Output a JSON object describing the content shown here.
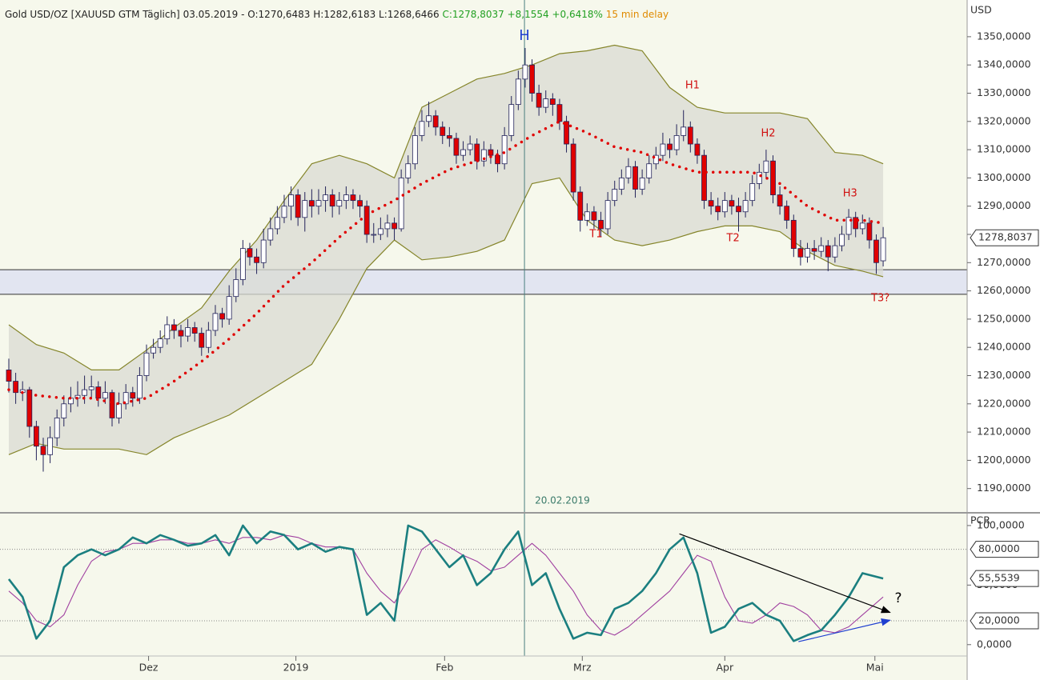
{
  "header": {
    "instrument": "Gold USD/OZ [XAUUSD GTM Täglich]",
    "date": "03.05.2019 -",
    "ohl": "O:1270,6483 H:1282,6183 L:1268,6466",
    "change": "C:1278,8037 +8,1554 +0,6418%",
    "delay": "15 min delay"
  },
  "chart_data": [
    {
      "type": "candlestick",
      "y_label": "USD",
      "open": [
        1232,
        1228,
        1224,
        1225,
        1212,
        1205,
        1202,
        1208,
        1215,
        1220,
        1222,
        1223,
        1225,
        1226,
        1222,
        1224,
        1215,
        1220,
        1224,
        1222,
        1230,
        1238,
        1240,
        1243,
        1248,
        1246,
        1244,
        1247,
        1245,
        1240,
        1246,
        1252,
        1250,
        1258,
        1264,
        1275,
        1272,
        1270,
        1278,
        1282,
        1286,
        1290,
        1294,
        1286,
        1292,
        1290,
        1292,
        1294,
        1290,
        1292,
        1294,
        1292,
        1290,
        1280,
        1280,
        1282,
        1284,
        1282,
        1300,
        1305,
        1315,
        1320,
        1322,
        1318,
        1315,
        1314,
        1308,
        1310,
        1312,
        1306,
        1310,
        1308,
        1305,
        1315,
        1326,
        1335,
        1340,
        1330,
        1325,
        1328,
        1326,
        1320,
        1312,
        1295,
        1285,
        1288,
        1285,
        1282,
        1292,
        1296,
        1300,
        1304,
        1296,
        1300,
        1305,
        1308,
        1312,
        1310,
        1315,
        1318,
        1312,
        1308,
        1292,
        1290,
        1288,
        1292,
        1290,
        1288,
        1292,
        1298,
        1302,
        1306,
        1294,
        1290,
        1285,
        1275,
        1272,
        1275,
        1274,
        1276,
        1272,
        1276,
        1280,
        1286,
        1282,
        1284,
        1278,
        1270.6483
      ],
      "high": [
        1236,
        1231,
        1228,
        1226,
        1214,
        1208,
        1212,
        1218,
        1223,
        1226,
        1228,
        1230,
        1230,
        1228,
        1228,
        1225,
        1224,
        1227,
        1226,
        1233,
        1241,
        1243,
        1246,
        1251,
        1250,
        1248,
        1250,
        1249,
        1247,
        1249,
        1255,
        1254,
        1262,
        1268,
        1278,
        1277,
        1275,
        1282,
        1286,
        1290,
        1294,
        1297,
        1296,
        1295,
        1296,
        1296,
        1297,
        1296,
        1295,
        1297,
        1296,
        1294,
        1292,
        1284,
        1286,
        1287,
        1286,
        1303,
        1308,
        1318,
        1324,
        1327,
        1324,
        1320,
        1318,
        1316,
        1313,
        1315,
        1314,
        1313,
        1312,
        1310,
        1318,
        1329,
        1338,
        1346,
        1342,
        1333,
        1331,
        1330,
        1328,
        1322,
        1314,
        1297,
        1291,
        1290,
        1288,
        1295,
        1299,
        1303,
        1307,
        1306,
        1303,
        1308,
        1311,
        1316,
        1314,
        1319,
        1324,
        1320,
        1314,
        1310,
        1295,
        1293,
        1295,
        1294,
        1293,
        1295,
        1301,
        1305,
        1310,
        1308,
        1297,
        1292,
        1287,
        1278,
        1277,
        1278,
        1279,
        1278,
        1279,
        1283,
        1289,
        1288,
        1287,
        1286,
        1280,
        1282.6183
      ],
      "low": [
        1224,
        1220,
        1221,
        1208,
        1200,
        1196,
        1199,
        1205,
        1212,
        1217,
        1219,
        1220,
        1222,
        1219,
        1220,
        1212,
        1213,
        1218,
        1219,
        1220,
        1228,
        1236,
        1238,
        1241,
        1243,
        1240,
        1242,
        1242,
        1237,
        1238,
        1244,
        1247,
        1248,
        1256,
        1262,
        1269,
        1266,
        1268,
        1276,
        1280,
        1284,
        1285,
        1283,
        1281,
        1286,
        1287,
        1288,
        1286,
        1287,
        1289,
        1289,
        1286,
        1277,
        1277,
        1278,
        1279,
        1278,
        1281,
        1298,
        1303,
        1313,
        1318,
        1315,
        1312,
        1311,
        1305,
        1306,
        1308,
        1303,
        1304,
        1305,
        1302,
        1303,
        1313,
        1324,
        1332,
        1327,
        1322,
        1323,
        1322,
        1317,
        1309,
        1292,
        1281,
        1283,
        1282,
        1279,
        1280,
        1290,
        1294,
        1298,
        1293,
        1294,
        1298,
        1303,
        1306,
        1307,
        1308,
        1313,
        1309,
        1305,
        1289,
        1287,
        1285,
        1286,
        1287,
        1281,
        1286,
        1290,
        1296,
        1300,
        1291,
        1287,
        1282,
        1272,
        1269,
        1270,
        1271,
        1272,
        1267,
        1270,
        1274,
        1278,
        1279,
        1280,
        1275,
        1266,
        1268.6466
      ],
      "close": [
        1228,
        1224,
        1225,
        1212,
        1205,
        1202,
        1208,
        1215,
        1220,
        1222,
        1223,
        1225,
        1226,
        1222,
        1224,
        1215,
        1220,
        1224,
        1222,
        1230,
        1238,
        1240,
        1243,
        1248,
        1246,
        1244,
        1247,
        1245,
        1240,
        1246,
        1252,
        1250,
        1258,
        1264,
        1275,
        1272,
        1270,
        1278,
        1282,
        1286,
        1290,
        1294,
        1286,
        1292,
        1290,
        1292,
        1294,
        1290,
        1292,
        1294,
        1292,
        1290,
        1280,
        1280,
        1282,
        1284,
        1282,
        1300,
        1305,
        1315,
        1320,
        1322,
        1318,
        1315,
        1314,
        1308,
        1310,
        1312,
        1306,
        1310,
        1308,
        1305,
        1315,
        1326,
        1335,
        1340,
        1330,
        1325,
        1328,
        1326,
        1320,
        1312,
        1295,
        1285,
        1288,
        1285,
        1282,
        1292,
        1296,
        1300,
        1304,
        1296,
        1300,
        1305,
        1308,
        1312,
        1310,
        1315,
        1318,
        1312,
        1308,
        1292,
        1290,
        1288,
        1292,
        1290,
        1288,
        1292,
        1298,
        1302,
        1306,
        1294,
        1290,
        1285,
        1275,
        1272,
        1275,
        1274,
        1276,
        1272,
        1276,
        1280,
        1286,
        1282,
        1284,
        1278,
        1270,
        1278.8037
      ],
      "up_color": "#ffffff",
      "down_color": "#e00000",
      "outline_color": "#23235a",
      "bands": {
        "x": [
          0,
          4,
          8,
          12,
          16,
          20,
          24,
          28,
          32,
          36,
          40,
          44,
          48,
          52,
          56,
          60,
          64,
          68,
          72,
          76,
          80,
          84,
          88,
          92,
          96,
          100,
          104,
          108,
          112,
          116,
          120,
          124,
          127
        ],
        "upper": [
          1248,
          1241,
          1238,
          1232,
          1232,
          1239,
          1247,
          1254,
          1267,
          1278,
          1292,
          1305,
          1308,
          1305,
          1300,
          1325,
          1330,
          1335,
          1337,
          1340,
          1344,
          1345,
          1347,
          1345,
          1332,
          1325,
          1323,
          1323,
          1323,
          1321,
          1309,
          1308,
          1305
        ],
        "middle": [
          1225,
          1223,
          1222,
          1222,
          1220,
          1222,
          1228,
          1235,
          1243,
          1252,
          1262,
          1270,
          1279,
          1287,
          1292,
          1298,
          1303,
          1306,
          1309,
          1315,
          1320,
          1316,
          1311,
          1309,
          1305,
          1302,
          1302,
          1302,
          1298,
          1290,
          1285,
          1285,
          1284
        ],
        "lower": [
          1202,
          1206,
          1204,
          1204,
          1204,
          1202,
          1208,
          1212,
          1216,
          1222,
          1228,
          1234,
          1250,
          1268,
          1278,
          1271,
          1272,
          1274,
          1278,
          1298,
          1300,
          1285,
          1278,
          1276,
          1278,
          1281,
          1283,
          1283,
          1281,
          1274,
          1269,
          1267,
          1265
        ],
        "band_color": "#85852a",
        "fill_color": "#d9dbd3",
        "middle_color": "#e00000"
      },
      "zone": [
        1258.8,
        1267.5
      ],
      "zone_color": "#dde0f2",
      "marker_x": 74.9,
      "marker_label": "20.02.2019",
      "last_price_label": "1278,8037",
      "annotations": [
        {
          "text": "H",
          "x": 74.9,
          "y": 1350.3,
          "color": "#1f3fd0"
        },
        {
          "text": "H1",
          "x": 99.3,
          "y": 1332.7,
          "color": "#d01010"
        },
        {
          "text": "H2",
          "x": 110.3,
          "y": 1315.7,
          "color": "#d01010"
        },
        {
          "text": "H3",
          "x": 122.2,
          "y": 1294.5,
          "color": "#d01010"
        },
        {
          "text": "T1",
          "x": 85.3,
          "y": 1280,
          "color": "#d01010"
        },
        {
          "text": "T2",
          "x": 105.2,
          "y": 1278.6,
          "color": "#d01010"
        },
        {
          "text": "T3?",
          "x": 126.6,
          "y": 1257.4,
          "color": "#d01010"
        }
      ],
      "xlim": [
        -1.28,
        139.2
      ],
      "ylim": [
        1181.7,
        1363
      ],
      "xticks": [
        {
          "value": 20.3,
          "label": "Dez"
        },
        {
          "value": 41.7,
          "label": "2019"
        },
        {
          "value": 63.3,
          "label": "Feb"
        },
        {
          "value": 83.3,
          "label": "Mrz"
        },
        {
          "value": 104,
          "label": "Apr"
        },
        {
          "value": 125.8,
          "label": "Mai"
        }
      ],
      "yticks": [
        {
          "value": 1190,
          "label": "1190,0000"
        },
        {
          "value": 1200,
          "label": "1200,0000"
        },
        {
          "value": 1210,
          "label": "1210,0000"
        },
        {
          "value": 1220,
          "label": "1220,0000"
        },
        {
          "value": 1230,
          "label": "1230,0000"
        },
        {
          "value": 1240,
          "label": "1240,0000"
        },
        {
          "value": 1250,
          "label": "1250,0000"
        },
        {
          "value": 1260,
          "label": "1260,0000"
        },
        {
          "value": 1270,
          "label": "1270,0000"
        },
        {
          "value": 1280,
          "label": "1280,0000"
        },
        {
          "value": 1290,
          "label": "1290,0000"
        },
        {
          "value": 1300,
          "label": "1300,0000"
        },
        {
          "value": 1310,
          "label": "1310,0000"
        },
        {
          "value": 1320,
          "label": "1320,0000"
        },
        {
          "value": 1330,
          "label": "1330,0000"
        },
        {
          "value": 1340,
          "label": "1340,0000"
        },
        {
          "value": 1350,
          "label": "1350,0000"
        }
      ]
    },
    {
      "type": "line",
      "y_label": "PCR",
      "x": [
        0,
        2,
        4,
        6,
        8,
        10,
        12,
        14,
        16,
        18,
        20,
        22,
        24,
        26,
        28,
        30,
        32,
        34,
        36,
        38,
        40,
        42,
        44,
        46,
        48,
        50,
        52,
        54,
        56,
        58,
        60,
        62,
        64,
        66,
        68,
        70,
        72,
        74,
        76,
        78,
        80,
        82,
        84,
        86,
        88,
        90,
        92,
        94,
        96,
        98,
        100,
        102,
        104,
        106,
        108,
        110,
        112,
        114,
        116,
        118,
        120,
        122,
        124,
        127
      ],
      "series": [
        {
          "color": "#1b7f80",
          "values": [
            55,
            40,
            5,
            20,
            65,
            75,
            80,
            75,
            80,
            90,
            85,
            92,
            88,
            83,
            85,
            92,
            75,
            100,
            85,
            95,
            92,
            80,
            85,
            78,
            82,
            80,
            25,
            35,
            20,
            100,
            95,
            80,
            65,
            75,
            50,
            60,
            80,
            95,
            50,
            60,
            30,
            5,
            10,
            8,
            30,
            35,
            45,
            60,
            80,
            90,
            60,
            10,
            15,
            30,
            35,
            25,
            20,
            3,
            8,
            12,
            25,
            40,
            60,
            55.5539
          ]
        },
        {
          "color": "#a040a0",
          "values": [
            45,
            35,
            20,
            15,
            25,
            50,
            70,
            78,
            80,
            85,
            85,
            88,
            88,
            85,
            85,
            88,
            85,
            90,
            90,
            88,
            92,
            90,
            85,
            82,
            82,
            80,
            60,
            45,
            35,
            55,
            80,
            88,
            82,
            75,
            70,
            62,
            65,
            75,
            85,
            75,
            60,
            45,
            25,
            12,
            8,
            15,
            25,
            35,
            45,
            60,
            75,
            70,
            40,
            20,
            18,
            25,
            35,
            32,
            25,
            12,
            10,
            15,
            25,
            40
          ]
        }
      ],
      "reference_lines": [
        20,
        80
      ],
      "tags": [
        {
          "value": 80,
          "label": "80,0000"
        },
        {
          "value": 55.5539,
          "label": "55,5539"
        },
        {
          "value": 20,
          "label": "20,0000"
        }
      ],
      "arrows": [
        {
          "x": [
            97.4,
            128
          ],
          "y": [
            93,
            27
          ],
          "color": "#000000"
        },
        {
          "x": [
            114.7,
            128
          ],
          "y": [
            2.5,
            20.5
          ],
          "color": "#1f3fd0"
        }
      ],
      "annotations": [
        {
          "text": "?",
          "x": 129.2,
          "y": 38.8,
          "color": "#000000"
        }
      ],
      "xlim": [
        -1.28,
        139.2
      ],
      "ylim": [
        -8.2,
        108
      ],
      "yticks": [
        {
          "value": 0,
          "label": "0,0000"
        },
        {
          "value": 50,
          "label": "50,0000"
        },
        {
          "value": 100,
          "label": "100,0000"
        }
      ]
    }
  ]
}
